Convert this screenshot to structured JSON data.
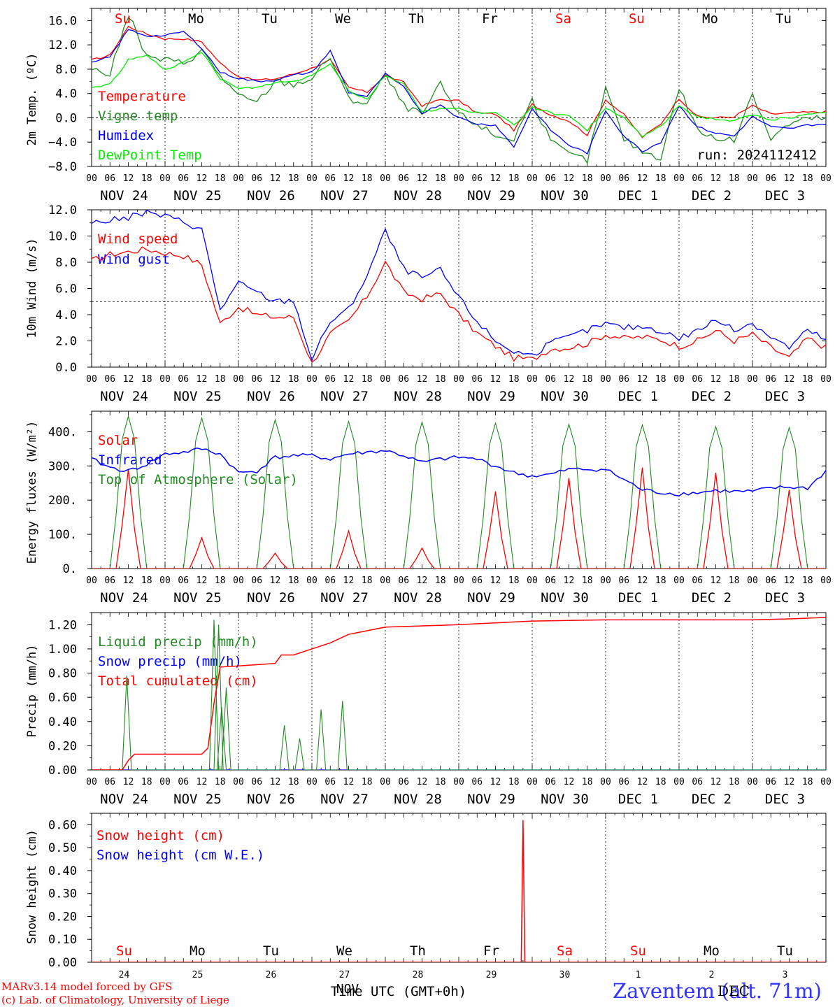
{
  "chart_data": [
    {
      "type": "line",
      "ylabel": "2m Temp. (ºC)",
      "ylim": [
        -8,
        18
      ],
      "yticks": [
        "16.0",
        "12.0",
        "8.0",
        "4.0",
        "0.0",
        "−4.0",
        "−8.0"
      ],
      "ytick_values": [
        16,
        12,
        8,
        4,
        0,
        -4,
        -8
      ],
      "dashed_hline": 0,
      "run_label": "run: 2024112412",
      "legend": [
        {
          "label": "Temperature",
          "color": "#ff0000"
        },
        {
          "label": "Vigne temp",
          "color": "#228b22"
        },
        {
          "label": "Humidex",
          "color": "#0000ff"
        },
        {
          "label": "DewPoint Temp",
          "color": "#00ee00"
        }
      ],
      "day_names": [
        "Su",
        "Mo",
        "Tu",
        "We",
        "Th",
        "Fr",
        "Sa",
        "Su",
        "Mo",
        "Tu"
      ],
      "day_name_colors": [
        "#ff0000",
        "#000000",
        "#000000",
        "#000000",
        "#000000",
        "#000000",
        "#ff0000",
        "#ff0000",
        "#000000",
        "#000000"
      ],
      "x_hours": [
        0,
        6,
        12,
        18,
        24,
        30,
        36,
        42,
        48,
        54,
        60,
        66,
        72,
        78,
        84,
        90,
        96,
        102,
        108,
        114,
        120,
        126,
        132,
        138,
        144,
        150,
        156,
        162,
        168,
        174,
        180,
        186,
        192,
        198,
        204,
        210,
        216,
        222,
        228,
        234,
        240
      ],
      "series": [
        {
          "name": "Temperature",
          "color": "#ff0000",
          "values": [
            9.5,
            10.3,
            15.0,
            13.8,
            13.0,
            13.0,
            12.5,
            9.0,
            6.8,
            6.2,
            6.4,
            7.2,
            8.2,
            9.5,
            5.0,
            4.2,
            7.0,
            5.8,
            2.0,
            3.0,
            2.8,
            0.8,
            0.6,
            -2.0,
            2.2,
            0.5,
            -0.5,
            -2.8,
            3.0,
            0.5,
            -3.2,
            -1.0,
            3.2,
            0.2,
            0.0,
            0.2,
            2.0,
            0.6,
            0.8,
            0.9,
            1.0
          ]
        },
        {
          "name": "Vigne temp",
          "color": "#228b22",
          "values": [
            8.0,
            7.2,
            17.0,
            10.0,
            9.5,
            9.0,
            11.0,
            7.0,
            3.5,
            2.5,
            6.0,
            5.5,
            6.5,
            10.0,
            3.0,
            2.5,
            7.0,
            2.0,
            0.5,
            5.5,
            0.5,
            -1.0,
            -3.0,
            -3.5,
            3.0,
            -4.0,
            -6.0,
            -7.0,
            4.8,
            -3.5,
            -5.5,
            -6.5,
            5.0,
            -2.0,
            -3.5,
            -3.8,
            4.2,
            -3.5,
            -1.0,
            -0.2,
            0.0
          ]
        },
        {
          "name": "Humidex",
          "color": "#0000ff",
          "values": [
            9.0,
            10.0,
            14.5,
            13.5,
            13.5,
            14.2,
            11.5,
            7.5,
            6.5,
            6.0,
            6.2,
            7.0,
            7.5,
            11.0,
            4.2,
            3.5,
            7.2,
            5.0,
            0.8,
            2.2,
            0.0,
            -1.0,
            -1.2,
            -4.8,
            1.5,
            -2.0,
            -4.5,
            -5.8,
            1.2,
            -3.0,
            -5.5,
            -4.0,
            2.0,
            -1.5,
            -2.5,
            -3.0,
            0.2,
            -1.5,
            -1.8,
            -1.2,
            -1.0
          ]
        },
        {
          "name": "DewPoint Temp",
          "color": "#00ee00",
          "values": [
            5.0,
            5.5,
            9.5,
            10.2,
            8.0,
            9.0,
            10.8,
            6.5,
            4.8,
            5.0,
            5.8,
            6.0,
            7.0,
            9.0,
            4.5,
            3.0,
            7.0,
            5.5,
            1.0,
            1.5,
            1.5,
            0.8,
            0.8,
            -1.2,
            1.8,
            0.8,
            0.2,
            -2.0,
            1.5,
            0.0,
            -3.0,
            -1.5,
            2.0,
            0.2,
            -0.2,
            -0.5,
            0.5,
            -0.3,
            0.0,
            0.5,
            0.8
          ]
        }
      ]
    },
    {
      "type": "line",
      "ylabel": "10m Wind (m/s)",
      "ylim": [
        0,
        12
      ],
      "yticks": [
        "12.0",
        "10.0",
        "8.0",
        "6.0",
        "4.0",
        "2.0",
        "0.0"
      ],
      "ytick_values": [
        12,
        10,
        8,
        6,
        4,
        2,
        0
      ],
      "dashed_hline": 5,
      "legend": [
        {
          "label": "Wind speed",
          "color": "#ff0000"
        },
        {
          "label": "Wind gust",
          "color": "#0000ff"
        }
      ],
      "x_hours": [
        0,
        6,
        12,
        18,
        24,
        30,
        36,
        42,
        48,
        54,
        60,
        66,
        72,
        78,
        84,
        90,
        96,
        102,
        108,
        114,
        120,
        126,
        132,
        138,
        144,
        150,
        156,
        162,
        168,
        174,
        180,
        186,
        192,
        198,
        204,
        210,
        216,
        222,
        228,
        234,
        240
      ],
      "series": [
        {
          "name": "Wind speed",
          "color": "#ff0000",
          "values": [
            8.1,
            8.6,
            8.8,
            9.0,
            8.7,
            8.5,
            7.8,
            3.3,
            4.6,
            4.0,
            3.8,
            3.8,
            0.3,
            2.5,
            3.5,
            5.4,
            8.0,
            5.7,
            5.2,
            5.6,
            4.0,
            2.6,
            1.6,
            0.7,
            0.6,
            1.4,
            1.5,
            1.8,
            2.5,
            2.2,
            2.3,
            2.1,
            1.6,
            2.0,
            2.8,
            2.0,
            2.5,
            1.5,
            0.7,
            2.2,
            1.5
          ]
        },
        {
          "name": "Wind gust",
          "color": "#0000ff",
          "values": [
            11.0,
            11.2,
            11.4,
            11.8,
            11.5,
            11.1,
            10.5,
            4.4,
            6.4,
            5.7,
            5.0,
            5.1,
            0.6,
            3.5,
            4.4,
            7.0,
            10.4,
            7.5,
            6.8,
            7.4,
            5.3,
            3.5,
            2.0,
            1.2,
            0.9,
            1.8,
            2.3,
            2.8,
            3.3,
            3.0,
            3.1,
            2.8,
            2.2,
            2.8,
            3.6,
            2.8,
            3.4,
            2.3,
            1.5,
            2.8,
            2.1
          ]
        }
      ]
    },
    {
      "type": "line",
      "ylabel": "Energy fluxes (W/m²)",
      "ylim": [
        0,
        460
      ],
      "yticks": [
        "400.",
        "300.",
        "200.",
        "100.",
        "0."
      ],
      "ytick_values": [
        400,
        300,
        200,
        100,
        0
      ],
      "legend": [
        {
          "label": "Solar",
          "color": "#ff0000"
        },
        {
          "label": "Infrared",
          "color": "#0000ff"
        },
        {
          "label": "Top of Atmosphere (Solar)",
          "color": "#228b22"
        }
      ],
      "day_peaks_solar": [
        290,
        90,
        45,
        110,
        60,
        225,
        265,
        295,
        280,
        230
      ],
      "day_peaks_toa": [
        445,
        440,
        435,
        430,
        428,
        425,
        422,
        420,
        415,
        412
      ],
      "infrared": {
        "name": "Infrared",
        "color": "#0000ff",
        "x_hours": [
          0,
          6,
          12,
          18,
          24,
          30,
          36,
          42,
          48,
          54,
          60,
          66,
          72,
          78,
          84,
          90,
          96,
          102,
          108,
          114,
          120,
          126,
          132,
          138,
          144,
          150,
          156,
          162,
          168,
          174,
          180,
          186,
          192,
          198,
          204,
          210,
          216,
          222,
          228,
          234,
          240
        ],
        "values": [
          320,
          295,
          285,
          305,
          335,
          340,
          350,
          335,
          280,
          285,
          325,
          330,
          330,
          320,
          335,
          340,
          345,
          330,
          310,
          320,
          325,
          320,
          300,
          280,
          270,
          275,
          290,
          290,
          290,
          260,
          230,
          222,
          218,
          222,
          228,
          225,
          225,
          235,
          238,
          235,
          285
        ]
      }
    },
    {
      "type": "line",
      "ylabel": "Precip (mm/h)",
      "ylim": [
        0,
        1.3
      ],
      "yticks": [
        "1.20",
        "1.00",
        "0.80",
        "0.60",
        "0.40",
        "0.20",
        "0.00"
      ],
      "ytick_values": [
        1.2,
        1.0,
        0.8,
        0.6,
        0.4,
        0.2,
        0.0
      ],
      "legend": [
        {
          "label": "Liquid precip (mm/h)",
          "color": "#228b22"
        },
        {
          "label": "Snow precip (mm/h)",
          "color": "#0000ff"
        },
        {
          "label": "Total cumulated (cm)",
          "color": "#ff0000"
        }
      ],
      "liquid_spikes": [
        {
          "hour": 11.5,
          "value": 0.78
        },
        {
          "hour": 40,
          "value": 1.24
        },
        {
          "hour": 44,
          "value": 0.68
        },
        {
          "hour": 41.5,
          "value": 1.2
        },
        {
          "hour": 42.5,
          "value": 0.52
        },
        {
          "hour": 63,
          "value": 0.37
        },
        {
          "hour": 68,
          "value": 0.26
        },
        {
          "hour": 75,
          "value": 0.5
        },
        {
          "hour": 82,
          "value": 0.57
        }
      ],
      "total_cumulated": {
        "x_hours": [
          0,
          10,
          12,
          14,
          36,
          38,
          40,
          42,
          48,
          60,
          62,
          66,
          72,
          78,
          84,
          96,
          120,
          144,
          168,
          192,
          216,
          230,
          240
        ],
        "values": [
          0,
          0,
          0.08,
          0.13,
          0.13,
          0.18,
          0.55,
          0.85,
          0.86,
          0.88,
          0.95,
          0.95,
          1.0,
          1.05,
          1.12,
          1.18,
          1.2,
          1.23,
          1.24,
          1.24,
          1.24,
          1.25,
          1.26
        ]
      }
    },
    {
      "type": "line",
      "ylabel": "Snow height (cm)",
      "ylim": [
        0,
        0.65
      ],
      "yticks": [
        "0.60",
        "0.50",
        "0.40",
        "0.30",
        "0.20",
        "0.10",
        "0.00"
      ],
      "ytick_values": [
        0.6,
        0.5,
        0.4,
        0.3,
        0.2,
        0.1,
        0.0
      ],
      "legend": [
        {
          "label": "Snow height (cm)",
          "color": "#ff0000"
        },
        {
          "label": "Snow height (cm W.E.)",
          "color": "#0000ff"
        }
      ],
      "snow_spike": {
        "hour": 141,
        "value": 0.62
      },
      "day_names": [
        "Su",
        "Mo",
        "Tu",
        "We",
        "Th",
        "Fr",
        "Sa",
        "Su",
        "Mo",
        "Tu"
      ],
      "day_name_colors": [
        "#ff0000",
        "#000000",
        "#000000",
        "#000000",
        "#000000",
        "#000000",
        "#ff0000",
        "#ff0000",
        "#000000",
        "#000000"
      ],
      "day_numbers": [
        "24",
        "25",
        "26",
        "27",
        "28",
        "29",
        "30",
        "1",
        "2",
        "3"
      ],
      "xlabel": "Time UTC (GMT+0h)",
      "xlabel_overlap": "NOV"
    }
  ],
  "x_axis": {
    "hour_labels": [
      "00",
      "06",
      "12",
      "18"
    ],
    "final_hour_label": "00",
    "date_labels": [
      "NOV 24",
      "NOV 25",
      "NOV 26",
      "NOV 27",
      "NOV 28",
      "NOV 29",
      "NOV 30",
      "DEC  1",
      "DEC  2",
      "DEC  3"
    ]
  },
  "footer": {
    "credit_line1": "MARv3.14 model forced by GFS",
    "credit_line2": "(c) Lab. of Climatology, University of Liege",
    "location": "Zaventem (alt. 71m)",
    "location_overlap": "DEC"
  }
}
